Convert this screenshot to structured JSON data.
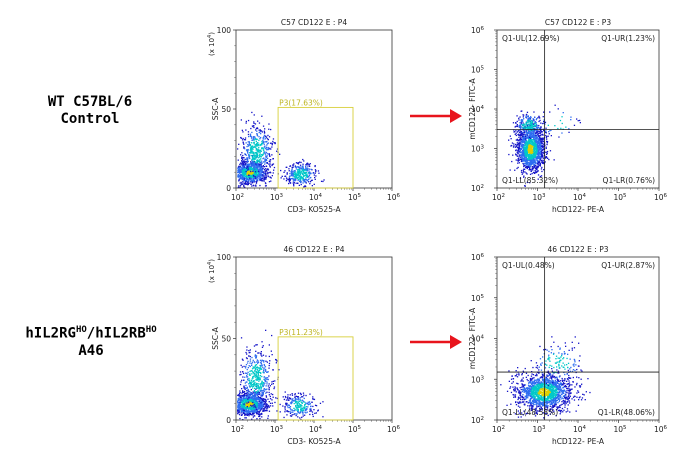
{
  "rows": [
    {
      "sample_label_line1": "WT C57BL/6",
      "sample_label_line2": "Control",
      "gate_plot": {
        "title": "C57 CD122 E : P4",
        "xlabel": "CD3- KO525-A",
        "ylabel": "SSC-A",
        "y_multiplier_label": "(x 10",
        "y_multiplier_exp": "4",
        "y_multiplier_close": ")",
        "gate_label": "P3(17.63%)"
      },
      "quad_plot": {
        "title": "C57 CD122 E : P3",
        "xlabel": "hCD122- PE-A",
        "ylabel": "mCD122- FITC-A",
        "q_ul": "Q1-UL(12.69%)",
        "q_ur": "Q1-UR(1.23%)",
        "q_ll": "Q1-LL(85.32%)",
        "q_lr": "Q1-LR(0.76%)"
      }
    },
    {
      "sample_label_line1": "hIL2RG",
      "sample_label_sup1": "HO",
      "sample_label_mid": "/hIL2RB",
      "sample_label_sup2": "HO",
      "sample_label_line2": "A46",
      "gate_plot": {
        "title": "46 CD122 E : P4",
        "xlabel": "CD3- KO525-A",
        "ylabel": "SSC-A",
        "y_multiplier_label": "(x 10",
        "y_multiplier_exp": "4",
        "y_multiplier_close": ")",
        "gate_label": "P3(11.23%)"
      },
      "quad_plot": {
        "title": "46 CD122 E : P3",
        "xlabel": "hCD122- PE-A",
        "ylabel": "mCD122- FITC-A",
        "q_ul": "Q1-UL(0.48%)",
        "q_ur": "Q1-UR(2.87%)",
        "q_ll": "Q1-LL(48.58%)",
        "q_lr": "Q1-LR(48.06%)"
      }
    }
  ],
  "chart_data": [
    {
      "type": "scatter",
      "title": "C57 CD122 E : P4",
      "xlabel": "CD3- KO525-A",
      "ylabel": "SSC-A",
      "x_scale": "log",
      "xlim": [
        100,
        1000000
      ],
      "x_ticks": [
        "10^2",
        "10^3",
        "10^4",
        "10^5",
        "10^6"
      ],
      "ylim": [
        0,
        100
      ],
      "y_ticks": [
        0,
        50,
        100
      ],
      "y_units": "x 10^4",
      "gate": {
        "name": "P3",
        "percent": 17.63,
        "x_range": [
          1200,
          100000
        ],
        "y_range": [
          0,
          51
        ]
      },
      "populations": [
        {
          "x_center": 220,
          "y_center": 10,
          "x_spread": 0.23,
          "y_spread": 3.5,
          "weight": 0.52
        },
        {
          "x_center": 330,
          "y_center": 24,
          "x_spread": 0.2,
          "y_spread": 8,
          "weight": 0.28
        },
        {
          "x_center": 4500,
          "y_center": 9,
          "x_spread": 0.2,
          "y_spread": 3.5,
          "weight": 0.2
        }
      ]
    },
    {
      "type": "scatter",
      "title": "C57 CD122 E : P3",
      "xlabel": "hCD122- PE-A",
      "ylabel": "mCD122- FITC-A",
      "x_scale": "log",
      "y_scale": "log",
      "xlim": [
        100,
        1000000
      ],
      "ylim": [
        100,
        1000000
      ],
      "x_ticks": [
        "10^2",
        "10^3",
        "10^4",
        "10^5",
        "10^6"
      ],
      "y_ticks": [
        "10^2",
        "10^3",
        "10^4",
        "10^5",
        "10^6"
      ],
      "quadrant_divider": {
        "x": 1500,
        "y": 3000
      },
      "quadrants": {
        "UL": 12.69,
        "UR": 1.23,
        "LL": 85.32,
        "LR": 0.76
      },
      "populations": [
        {
          "x_center": 650,
          "y_center": 1000,
          "x_spread": 0.17,
          "y_spread": 0.28,
          "weight": 0.85
        },
        {
          "x_center": 600,
          "y_center": 4000,
          "x_spread": 0.18,
          "y_spread": 0.15,
          "weight": 0.13
        },
        {
          "x_center": 3000,
          "y_center": 4500,
          "x_spread": 0.25,
          "y_spread": 0.2,
          "weight": 0.02
        }
      ]
    },
    {
      "type": "scatter",
      "title": "46 CD122 E : P4",
      "xlabel": "CD3- KO525-A",
      "ylabel": "SSC-A",
      "x_scale": "log",
      "xlim": [
        100,
        1000000
      ],
      "x_ticks": [
        "10^2",
        "10^3",
        "10^4",
        "10^5",
        "10^6"
      ],
      "ylim": [
        0,
        100
      ],
      "y_ticks": [
        0,
        50,
        100
      ],
      "y_units": "x 10^4",
      "gate": {
        "name": "P3",
        "percent": 11.23,
        "x_range": [
          1200,
          100000
        ],
        "y_range": [
          0,
          51
        ]
      },
      "populations": [
        {
          "x_center": 210,
          "y_center": 10,
          "x_spread": 0.23,
          "y_spread": 3.5,
          "weight": 0.58
        },
        {
          "x_center": 320,
          "y_center": 26,
          "x_spread": 0.2,
          "y_spread": 9,
          "weight": 0.28
        },
        {
          "x_center": 4000,
          "y_center": 9,
          "x_spread": 0.2,
          "y_spread": 3.5,
          "weight": 0.14
        }
      ]
    },
    {
      "type": "scatter",
      "title": "46 CD122 E : P3",
      "xlabel": "hCD122- PE-A",
      "ylabel": "mCD122- FITC-A",
      "x_scale": "log",
      "y_scale": "log",
      "xlim": [
        100,
        1000000
      ],
      "ylim": [
        100,
        1000000
      ],
      "x_ticks": [
        "10^2",
        "10^3",
        "10^4",
        "10^5",
        "10^6"
      ],
      "y_ticks": [
        "10^2",
        "10^3",
        "10^4",
        "10^5",
        "10^6"
      ],
      "quadrant_divider": {
        "x": 1500,
        "y": 1500
      },
      "quadrants": {
        "UL": 0.48,
        "UR": 2.87,
        "LL": 48.58,
        "LR": 48.06
      },
      "populations": [
        {
          "x_center": 1400,
          "y_center": 500,
          "x_spread": 0.34,
          "y_spread": 0.22,
          "weight": 0.92
        },
        {
          "x_center": 3000,
          "y_center": 2500,
          "x_spread": 0.3,
          "y_spread": 0.25,
          "weight": 0.08
        }
      ]
    }
  ],
  "colors": {
    "arrow": "#e8141c",
    "gate": "#d8cf3a",
    "divider": "#1a1a1a",
    "dot_low": "#1414c8",
    "dot_mid": "#00c8c8",
    "dot_high": "#e0d000"
  }
}
